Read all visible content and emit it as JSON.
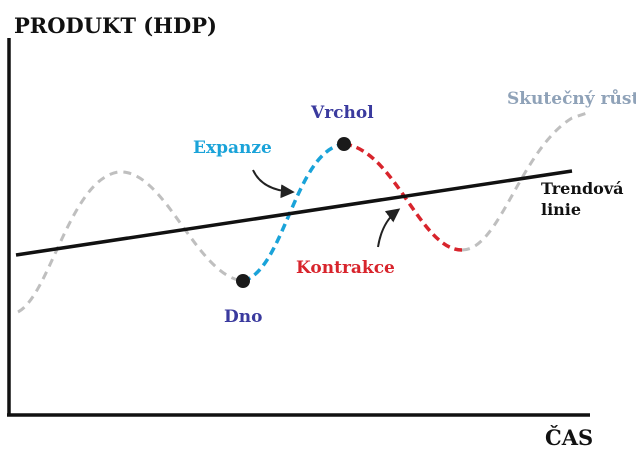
{
  "labels": {
    "y_axis": "PRODUKT (HDP)",
    "x_axis": "ČAS",
    "expansion": "Expanze",
    "peak": "Vrchol",
    "actual_growth": "Skutečný růst",
    "trend_line_1": "Trendová",
    "trend_line_2": "linie",
    "contraction": "Kontrakce",
    "trough": "Dno"
  },
  "colors": {
    "axis": "#111111",
    "trend": "#111111",
    "actual": "#bfbfbf",
    "expansion": "#1aa3d9",
    "contraction": "#d8242c",
    "peak_label": "#3a3a9e",
    "trough_label": "#3a3a9e",
    "actual_label": "#8fa2b8",
    "point": "#1a1a1a"
  }
}
